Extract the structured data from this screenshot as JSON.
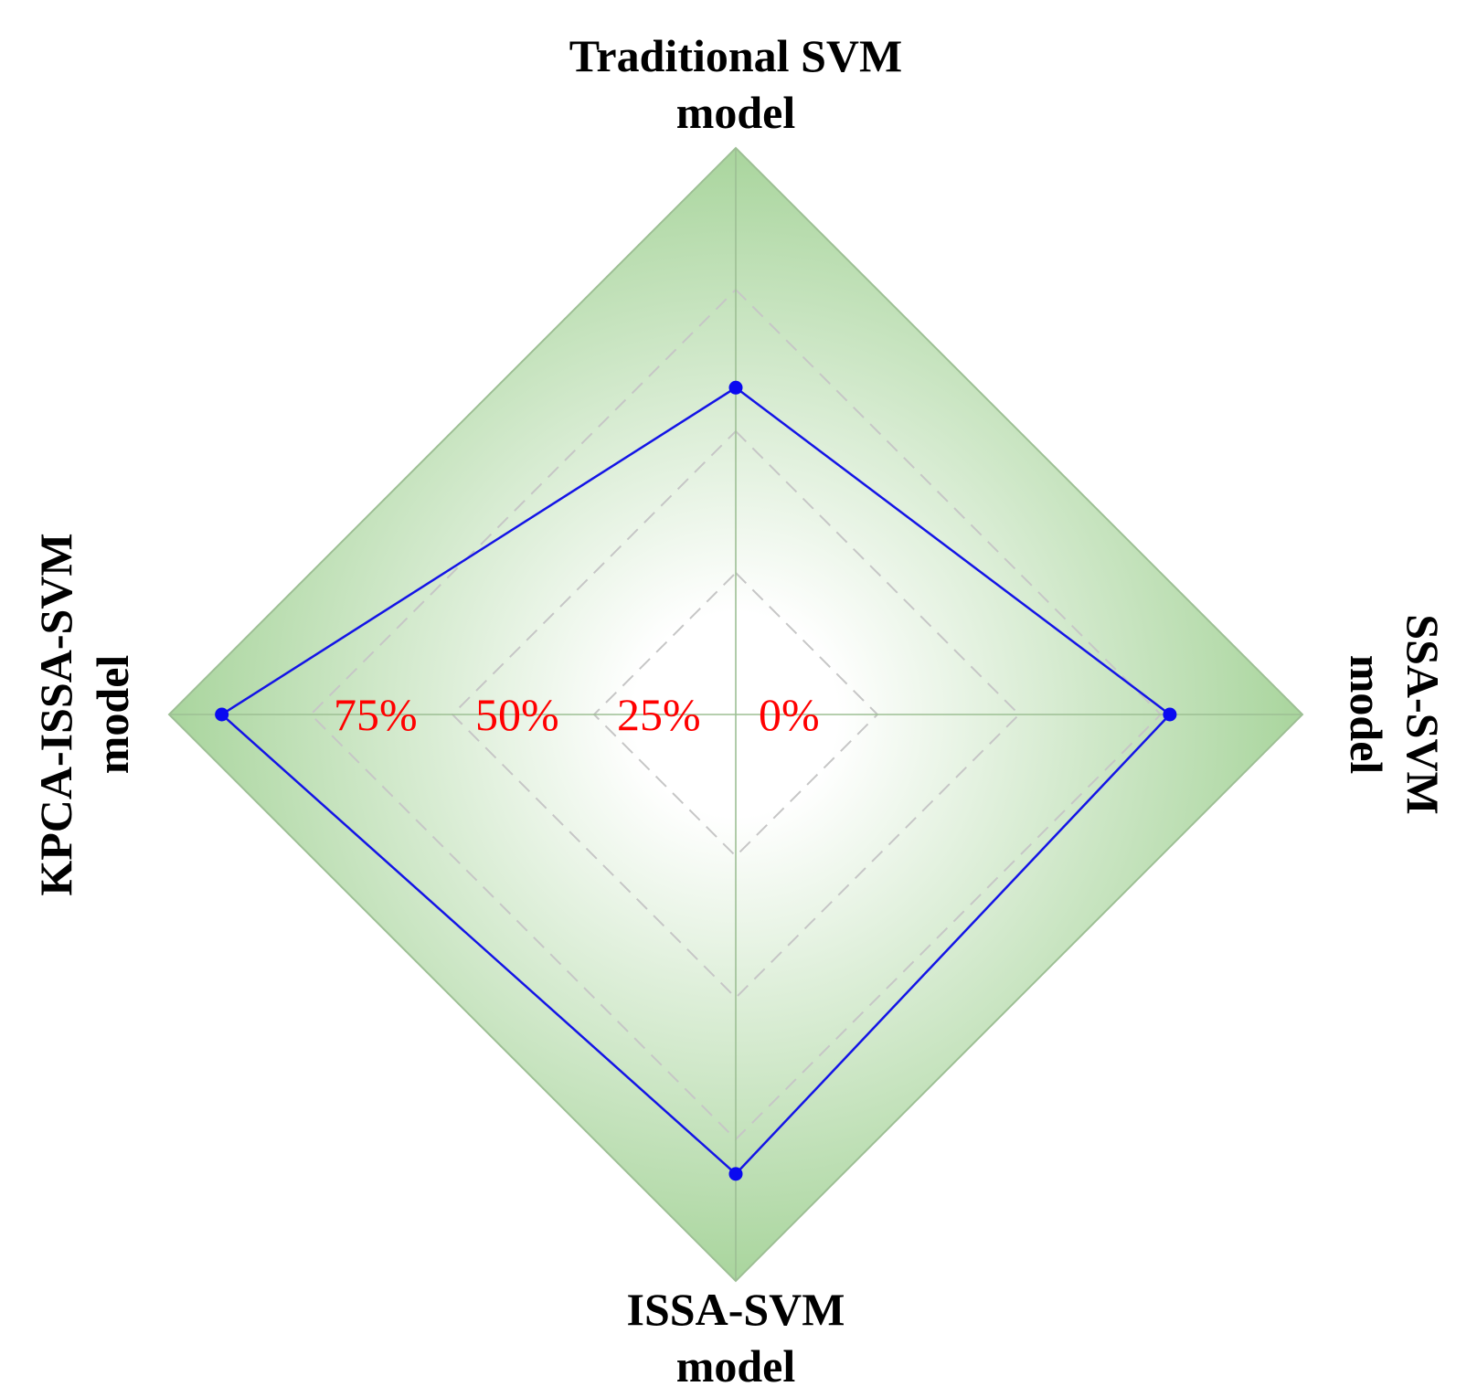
{
  "chart_data": {
    "type": "radar",
    "title": "",
    "axes": [
      {
        "name": "Traditional SVM model",
        "lines": [
          "Traditional SVM",
          "model"
        ]
      },
      {
        "name": "SSA-SVM model",
        "lines": [
          "SSA-SVM",
          "model"
        ]
      },
      {
        "name": "ISSA-SVM model",
        "lines": [
          "ISSA-SVM",
          "model"
        ]
      },
      {
        "name": "KPCA-ISSA-SVM model",
        "lines": [
          "KPCA-ISSA-SVM",
          "model"
        ]
      }
    ],
    "series": [
      {
        "values": [
          57.7,
          76.6,
          81.1,
          90.7
        ]
      }
    ],
    "range": [
      0,
      100
    ],
    "ticks": [
      0,
      25,
      50,
      75
    ],
    "tick_labels": [
      "0%",
      "25%",
      "50%",
      "75%"
    ],
    "grid": true,
    "colors": {
      "series_line": "#1414e6",
      "series_marker": "#0a0af0",
      "tick_label": "#ff0000",
      "fill_outer": "#a9d59d",
      "fill_inner": "#ffffff",
      "grid_line": "#c6c6c6",
      "outline": "#9dbf94"
    }
  }
}
